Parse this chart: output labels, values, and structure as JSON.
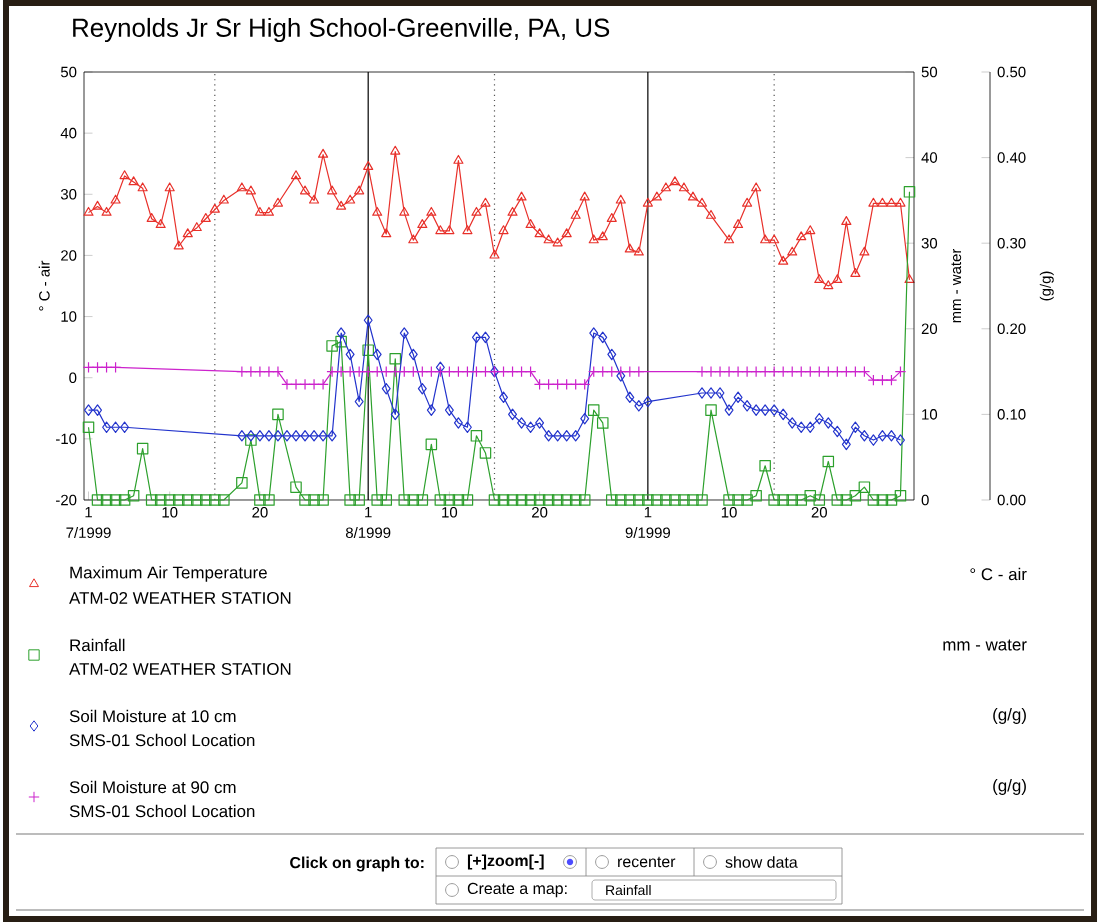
{
  "chart_data": {
    "type": "line",
    "title": "Reynolds Jr Sr High School-Greenville, PA, US",
    "ylabel": "° C - air",
    "y2label": "mm - water",
    "y3label": "(g/g)",
    "xlim": [
      "1999-06-30T12:00",
      "1999-09-30T12:00"
    ],
    "xticks": [
      {
        "value": "1999-07-01",
        "label": "1"
      },
      {
        "value": "1999-07-10",
        "label": "10"
      },
      {
        "value": "1999-07-20",
        "label": "20"
      },
      {
        "value": "1999-08-01",
        "label": "1"
      },
      {
        "value": "1999-08-10",
        "label": "10"
      },
      {
        "value": "1999-08-20",
        "label": "20"
      },
      {
        "value": "1999-09-01",
        "label": "1"
      },
      {
        "value": "1999-09-10",
        "label": "10"
      },
      {
        "value": "1999-09-20",
        "label": "20"
      }
    ],
    "ylim": [
      -20,
      50
    ],
    "yticks": [
      -20,
      -10,
      0,
      10,
      20,
      30,
      40,
      50
    ],
    "y2lim": [
      0,
      50
    ],
    "y2ticks": [
      0,
      10,
      20,
      30,
      40,
      50
    ],
    "y3lim": [
      0,
      0.5
    ],
    "y3ticks": [
      {
        "value": 0,
        "label": "0.00"
      },
      {
        "value": 0.1,
        "label": "0.10"
      },
      {
        "value": 0.2,
        "label": "0.20"
      },
      {
        "value": 0.3,
        "label": "0.30"
      },
      {
        "value": 0.4,
        "label": "0.40"
      },
      {
        "value": 0.5,
        "label": "0.50"
      }
    ],
    "legend": "bottom",
    "line_style": "solid",
    "ref_lines": [
      {
        "axis": "x",
        "value": "1999-07-15",
        "line_style": "dotted",
        "color": "#555555"
      },
      {
        "axis": "x",
        "value": "1999-08-01",
        "line_style": "solid",
        "color": "#000000"
      },
      {
        "axis": "x",
        "value": "1999-08-15",
        "line_style": "dotted",
        "color": "#555555"
      },
      {
        "axis": "x",
        "value": "1999-09-01",
        "line_style": "solid",
        "color": "#000000"
      },
      {
        "axis": "x",
        "value": "1999-09-15",
        "line_style": "dotted",
        "color": "#555555"
      }
    ],
    "series": [
      {
        "name": "Maximum Air Temperature",
        "color": "#e8302a",
        "marker": "triangle",
        "axis": "y",
        "x": [
          "1999-07-01",
          "1999-07-02",
          "1999-07-03",
          "1999-07-04",
          "1999-07-05",
          "1999-07-06",
          "1999-07-07",
          "1999-07-08",
          "1999-07-09",
          "1999-07-10",
          "1999-07-11",
          "1999-07-12",
          "1999-07-13",
          "1999-07-14",
          "1999-07-15",
          "1999-07-16",
          "1999-07-18",
          "1999-07-19",
          "1999-07-20",
          "1999-07-21",
          "1999-07-22",
          "1999-07-24",
          "1999-07-25",
          "1999-07-26",
          "1999-07-27",
          "1999-07-28",
          "1999-07-29",
          "1999-07-30",
          "1999-07-31",
          "1999-08-01",
          "1999-08-02",
          "1999-08-03",
          "1999-08-04",
          "1999-08-05",
          "1999-08-06",
          "1999-08-07",
          "1999-08-08",
          "1999-08-09",
          "1999-08-10",
          "1999-08-11",
          "1999-08-12",
          "1999-08-13",
          "1999-08-14",
          "1999-08-15",
          "1999-08-16",
          "1999-08-17",
          "1999-08-18",
          "1999-08-19",
          "1999-08-20",
          "1999-08-21",
          "1999-08-22",
          "1999-08-23",
          "1999-08-24",
          "1999-08-25",
          "1999-08-26",
          "1999-08-27",
          "1999-08-28",
          "1999-08-29",
          "1999-08-30",
          "1999-08-31",
          "1999-09-01",
          "1999-09-02",
          "1999-09-03",
          "1999-09-04",
          "1999-09-05",
          "1999-09-06",
          "1999-09-07",
          "1999-09-08",
          "1999-09-10",
          "1999-09-11",
          "1999-09-12",
          "1999-09-13",
          "1999-09-14",
          "1999-09-15",
          "1999-09-16",
          "1999-09-17",
          "1999-09-18",
          "1999-09-19",
          "1999-09-20",
          "1999-09-21",
          "1999-09-22",
          "1999-09-23",
          "1999-09-24",
          "1999-09-25",
          "1999-09-26",
          "1999-09-27",
          "1999-09-28",
          "1999-09-29",
          "1999-09-30"
        ],
        "values": [
          27,
          28,
          27,
          29,
          33,
          32,
          31,
          26,
          25,
          31,
          21.5,
          23.5,
          24.5,
          26,
          27.5,
          29,
          31,
          30.5,
          27,
          27,
          28.5,
          33,
          30.5,
          29,
          36.5,
          30.5,
          28,
          29,
          30.5,
          34.5,
          27,
          23.5,
          37,
          27,
          22.5,
          25,
          27,
          24,
          24,
          35.5,
          24,
          27,
          28.5,
          20,
          24,
          27,
          29.5,
          25,
          23.5,
          22.5,
          22,
          23.5,
          26.5,
          29.5,
          22.5,
          23,
          26,
          29,
          21,
          20.5,
          28.5,
          29.5,
          31,
          32,
          31,
          29.5,
          28.5,
          26.5,
          22.5,
          25,
          28.5,
          31,
          22.5,
          22.5,
          19,
          20.5,
          23,
          24,
          16,
          15,
          16,
          25.5,
          17,
          20.5,
          28.5,
          28.5,
          28.5,
          28.5,
          16
        ]
      },
      {
        "name": "Rainfall",
        "color": "#2ca02c",
        "marker": "square",
        "axis": "y2",
        "x": [
          "1999-07-01",
          "1999-07-02",
          "1999-07-03",
          "1999-07-04",
          "1999-07-05",
          "1999-07-06",
          "1999-07-07",
          "1999-07-08",
          "1999-07-09",
          "1999-07-10",
          "1999-07-11",
          "1999-07-12",
          "1999-07-13",
          "1999-07-14",
          "1999-07-15",
          "1999-07-16",
          "1999-07-18",
          "1999-07-19",
          "1999-07-20",
          "1999-07-21",
          "1999-07-22",
          "1999-07-24",
          "1999-07-25",
          "1999-07-26",
          "1999-07-27",
          "1999-07-28",
          "1999-07-29",
          "1999-07-30",
          "1999-07-31",
          "1999-08-01",
          "1999-08-02",
          "1999-08-03",
          "1999-08-04",
          "1999-08-05",
          "1999-08-06",
          "1999-08-07",
          "1999-08-08",
          "1999-08-09",
          "1999-08-10",
          "1999-08-11",
          "1999-08-12",
          "1999-08-13",
          "1999-08-14",
          "1999-08-15",
          "1999-08-16",
          "1999-08-17",
          "1999-08-18",
          "1999-08-19",
          "1999-08-20",
          "1999-08-21",
          "1999-08-22",
          "1999-08-23",
          "1999-08-24",
          "1999-08-25",
          "1999-08-26",
          "1999-08-27",
          "1999-08-28",
          "1999-08-29",
          "1999-08-30",
          "1999-08-31",
          "1999-09-01",
          "1999-09-02",
          "1999-09-03",
          "1999-09-04",
          "1999-09-05",
          "1999-09-06",
          "1999-09-07",
          "1999-09-08",
          "1999-09-10",
          "1999-09-11",
          "1999-09-12",
          "1999-09-13",
          "1999-09-14",
          "1999-09-15",
          "1999-09-16",
          "1999-09-17",
          "1999-09-18",
          "1999-09-19",
          "1999-09-20",
          "1999-09-21",
          "1999-09-22",
          "1999-09-23",
          "1999-09-24",
          "1999-09-25",
          "1999-09-26",
          "1999-09-27",
          "1999-09-28",
          "1999-09-29",
          "1999-09-30"
        ],
        "values": [
          8.5,
          0,
          0,
          0,
          0,
          0.5,
          6,
          0,
          0,
          0,
          0,
          0,
          0,
          0,
          0,
          0,
          2,
          7,
          0,
          0,
          10,
          1.5,
          0,
          0,
          0,
          18,
          18.5,
          0,
          0,
          17.5,
          0,
          0,
          16.5,
          0,
          0,
          0,
          6.5,
          0,
          0,
          0,
          0,
          7.5,
          5.5,
          0,
          0,
          0,
          0,
          0,
          0,
          0,
          0,
          0,
          0,
          0,
          10.5,
          9,
          0,
          0,
          0,
          0,
          0,
          0,
          0,
          0,
          0,
          0,
          0,
          10.5,
          0,
          0,
          0,
          0.5,
          4,
          0,
          0,
          0,
          0,
          0.5,
          0,
          4.5,
          0,
          0,
          0.5,
          1.5,
          0,
          0,
          0,
          0.5,
          36
        ]
      },
      {
        "name": "Soil Moisture at 10 cm",
        "color": "#2233cc",
        "marker": "diamond",
        "axis": "y3",
        "x": [
          "1999-07-01",
          "1999-07-02",
          "1999-07-03",
          "1999-07-04",
          "1999-07-05",
          "1999-07-18",
          "1999-07-19",
          "1999-07-20",
          "1999-07-21",
          "1999-07-22",
          "1999-07-23",
          "1999-07-24",
          "1999-07-25",
          "1999-07-26",
          "1999-07-27",
          "1999-07-28",
          "1999-07-29",
          "1999-07-30",
          "1999-07-31",
          "1999-08-01",
          "1999-08-02",
          "1999-08-03",
          "1999-08-04",
          "1999-08-05",
          "1999-08-06",
          "1999-08-07",
          "1999-08-08",
          "1999-08-09",
          "1999-08-10",
          "1999-08-11",
          "1999-08-12",
          "1999-08-13",
          "1999-08-14",
          "1999-08-15",
          "1999-08-16",
          "1999-08-17",
          "1999-08-18",
          "1999-08-19",
          "1999-08-20",
          "1999-08-21",
          "1999-08-22",
          "1999-08-23",
          "1999-08-24",
          "1999-08-25",
          "1999-08-26",
          "1999-08-27",
          "1999-08-28",
          "1999-08-29",
          "1999-08-30",
          "1999-08-31",
          "1999-09-01",
          "1999-09-07",
          "1999-09-08",
          "1999-09-09",
          "1999-09-10",
          "1999-09-11",
          "1999-09-12",
          "1999-09-13",
          "1999-09-14",
          "1999-09-15",
          "1999-09-16",
          "1999-09-17",
          "1999-09-18",
          "1999-09-19",
          "1999-09-20",
          "1999-09-21",
          "1999-09-22",
          "1999-09-23",
          "1999-09-24",
          "1999-09-25",
          "1999-09-26",
          "1999-09-27",
          "1999-09-28",
          "1999-09-29"
        ],
        "values": [
          0.105,
          0.105,
          0.085,
          0.085,
          0.085,
          0.075,
          0.075,
          0.075,
          0.075,
          0.075,
          0.075,
          0.075,
          0.075,
          0.075,
          0.075,
          0.075,
          0.195,
          0.17,
          0.115,
          0.21,
          0.17,
          0.13,
          0.1,
          0.195,
          0.17,
          0.13,
          0.105,
          0.155,
          0.105,
          0.09,
          0.085,
          0.19,
          0.19,
          0.15,
          0.12,
          0.1,
          0.09,
          0.085,
          0.09,
          0.075,
          0.075,
          0.075,
          0.075,
          0.095,
          0.195,
          0.19,
          0.17,
          0.145,
          0.12,
          0.11,
          0.115,
          0.125,
          0.125,
          0.125,
          0.105,
          0.12,
          0.11,
          0.105,
          0.105,
          0.105,
          0.1,
          0.09,
          0.085,
          0.085,
          0.095,
          0.09,
          0.08,
          0.065,
          0.085,
          0.075,
          0.07,
          0.075,
          0.075,
          0.07
        ]
      },
      {
        "name": "Soil Moisture at 90 cm",
        "color": "#cc22cc",
        "marker": "cross",
        "axis": "y3",
        "x": [
          "1999-07-01",
          "1999-07-02",
          "1999-07-03",
          "1999-07-04",
          "1999-07-18",
          "1999-07-19",
          "1999-07-20",
          "1999-07-21",
          "1999-07-22",
          "1999-07-23",
          "1999-07-24",
          "1999-07-25",
          "1999-07-26",
          "1999-07-27",
          "1999-07-28",
          "1999-07-29",
          "1999-07-30",
          "1999-07-31",
          "1999-08-01",
          "1999-08-02",
          "1999-08-03",
          "1999-08-04",
          "1999-08-05",
          "1999-08-06",
          "1999-08-07",
          "1999-08-08",
          "1999-08-09",
          "1999-08-10",
          "1999-08-11",
          "1999-08-12",
          "1999-08-13",
          "1999-08-14",
          "1999-08-15",
          "1999-08-16",
          "1999-08-17",
          "1999-08-18",
          "1999-08-19",
          "1999-08-20",
          "1999-08-21",
          "1999-08-22",
          "1999-08-23",
          "1999-08-24",
          "1999-08-25",
          "1999-08-26",
          "1999-08-27",
          "1999-08-28",
          "1999-08-29",
          "1999-08-30",
          "1999-08-31",
          "1999-09-07",
          "1999-09-08",
          "1999-09-09",
          "1999-09-10",
          "1999-09-11",
          "1999-09-12",
          "1999-09-13",
          "1999-09-14",
          "1999-09-15",
          "1999-09-16",
          "1999-09-17",
          "1999-09-18",
          "1999-09-19",
          "1999-09-20",
          "1999-09-21",
          "1999-09-22",
          "1999-09-23",
          "1999-09-24",
          "1999-09-25",
          "1999-09-26",
          "1999-09-27",
          "1999-09-28",
          "1999-09-29"
        ],
        "values": [
          0.155,
          0.155,
          0.155,
          0.155,
          0.15,
          0.15,
          0.15,
          0.15,
          0.15,
          0.135,
          0.135,
          0.135,
          0.135,
          0.135,
          0.15,
          0.15,
          0.15,
          0.15,
          0.15,
          0.15,
          0.15,
          0.15,
          0.15,
          0.15,
          0.15,
          0.15,
          0.15,
          0.15,
          0.15,
          0.15,
          0.15,
          0.15,
          0.15,
          0.15,
          0.15,
          0.15,
          0.15,
          0.135,
          0.135,
          0.135,
          0.135,
          0.135,
          0.135,
          0.15,
          0.15,
          0.15,
          0.15,
          0.15,
          0.15,
          0.15,
          0.15,
          0.15,
          0.15,
          0.15,
          0.15,
          0.15,
          0.15,
          0.15,
          0.15,
          0.15,
          0.15,
          0.15,
          0.15,
          0.15,
          0.15,
          0.15,
          0.15,
          0.15,
          0.14,
          0.14,
          0.14,
          0.15
        ]
      }
    ],
    "annotations": [
      "ATM-02 WEATHER STATION",
      "ATM-02 WEATHER STATION",
      "SMS-01 School Location",
      "SMS-01 School Location",
      "° C - air",
      "mm - water",
      "(g/g)",
      "(g/g)",
      {
        "text": "7/1999",
        "x": "1999-07-01",
        "y": -20
      },
      {
        "text": "8/1999",
        "x": "1999-08-01",
        "y": -20
      },
      {
        "text": "9/1999",
        "x": "1999-09-01",
        "y": -20
      },
      "Click on graph to:",
      "[+]zoom[-]",
      "recenter",
      "show data",
      "Create a map:",
      "Rainfall"
    ]
  }
}
